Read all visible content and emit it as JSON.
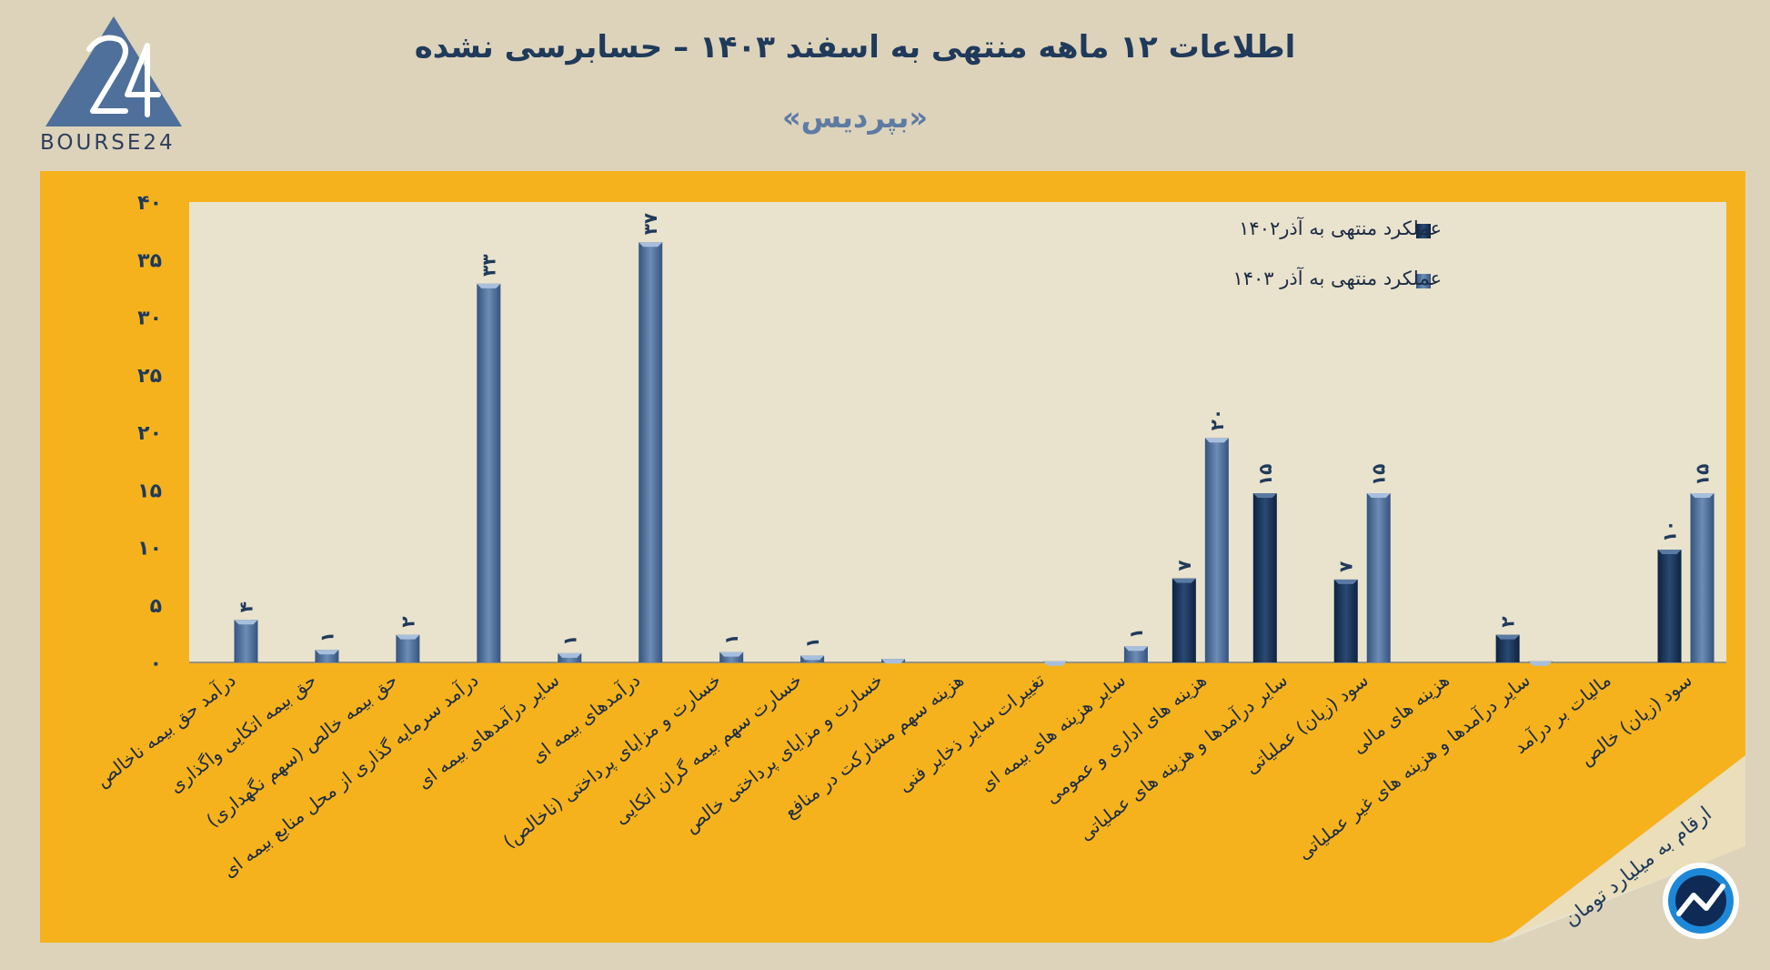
{
  "header": {
    "title": "اطلاعات ۱۲ ماهه منتهی به اسفند ۱۴۰۳ – حسابرسی نشده",
    "subtitle": "«بپردیس»",
    "logo_text": "BOURSE24"
  },
  "footer": {
    "unit_note": "ارقام به میلیارد تومان"
  },
  "colors": {
    "background": "#ddd3bb",
    "chart_panel": "#f6b21d",
    "plot_area": "#e9e2cd",
    "series_1402": "#1b3457",
    "series_1403": "#4a6a95",
    "label_text": "#1f3a5a"
  },
  "chart_data": {
    "type": "bar",
    "ylim": [
      0,
      40
    ],
    "yticks": [
      "۰",
      "۵",
      "۱۰",
      "۱۵",
      "۲۰",
      "۲۵",
      "۳۰",
      "۳۵",
      "۴۰"
    ],
    "ytick_values": [
      0,
      5,
      10,
      15,
      20,
      25,
      30,
      35,
      40
    ],
    "grid": false,
    "legend": "top-right",
    "categories": [
      "درآمد حق بیمه ناخالص",
      "حق بیمه اتکایی واگذاری",
      "حق بیمه خالص (سهم نگهداری)",
      "درآمد سرمایه گذاری از محل منابع بیمه ای",
      "سایر درآمدهای بیمه ای",
      "درآمدهای بیمه ای",
      "خسارت و مزایای پرداختی (ناخالص)",
      "خسارت سهم بیمه گران اتکایی",
      "خسارت و مزایای پرداختی خالص",
      "هزینه سهم مشارکت در منافع",
      "تغییرات سایر ذخایر فنی",
      "سایر هزینه های بیمه ای",
      "هزینه های اداری و عمومی",
      "سایر درآمدها و هزینه های عملیاتی",
      "سود (زیان) عملیاتی",
      "هزینه های مالی",
      "سایر درآمدها و هزینه های غیر عملیاتی",
      "مالیات بر درآمد",
      "سود (زیان) خالص"
    ],
    "series": [
      {
        "name": "عملکرد منتهی به آذر۱۴۰۲",
        "values": [
          0,
          0,
          0,
          0,
          0,
          0,
          0,
          0,
          0,
          0,
          0,
          0,
          7.3,
          14.7,
          7.2,
          0,
          2.4,
          0,
          9.8
        ],
        "labels": [
          "",
          "",
          "",
          "",
          "",
          "",
          "",
          "",
          "",
          "",
          "",
          "",
          "۷",
          "۱۵",
          "۷",
          "",
          "۲",
          "",
          "۱۰"
        ]
      },
      {
        "name": "عملکرد منتهی به آذر ۱۴۰۳",
        "values": [
          3.7,
          1.1,
          2.4,
          32.9,
          0.8,
          36.5,
          0.9,
          0.6,
          0.3,
          0,
          0.1,
          1.4,
          19.5,
          0,
          14.7,
          0,
          0.1,
          0,
          14.7
        ],
        "labels": [
          "۴",
          "۱",
          "۲",
          "۳۳",
          "۱",
          "۳۷",
          "۱",
          "۱",
          "",
          "",
          "",
          "۱",
          "۲۰",
          "",
          "۱۵",
          "",
          "",
          "",
          "۱۵"
        ]
      }
    ]
  }
}
